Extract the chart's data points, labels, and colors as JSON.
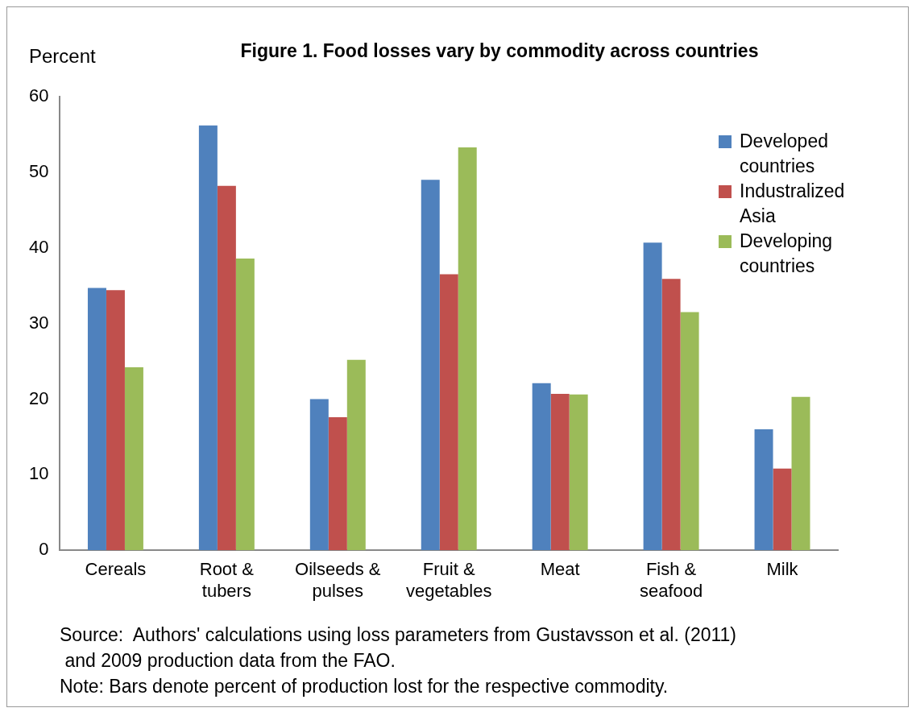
{
  "chart_data": {
    "type": "bar",
    "title": "Figure 1. Food losses vary by commodity across countries",
    "ylabel": "Percent",
    "categories": [
      "Cereals",
      "Root & tubers",
      "Oilseeds & pulses",
      "Fruit & vegetables",
      "Meat",
      "Fish & seafood",
      "Milk"
    ],
    "series": [
      {
        "name": "Developed countries",
        "color": "#4f81bd",
        "values": [
          34.7,
          56.2,
          20.0,
          49.0,
          22.1,
          40.7,
          16.0
        ]
      },
      {
        "name": "Industralized Asia",
        "color": "#c0504d",
        "values": [
          34.4,
          48.2,
          17.6,
          36.5,
          20.7,
          35.9,
          10.8
        ]
      },
      {
        "name": "Developing countries",
        "color": "#9bbb59",
        "values": [
          24.2,
          38.6,
          25.2,
          53.3,
          20.6,
          31.5,
          20.3
        ]
      }
    ],
    "ylim": [
      0,
      60
    ],
    "yticks": [
      0,
      10,
      20,
      30,
      40,
      50,
      60
    ],
    "grid": false,
    "legend": "top right",
    "annotations": [
      "Source:  Authors' calculations using loss parameters from Gustavsson et al. (2011)\n and 2009 production data from the FAO.",
      "Note: Bars denote percent of production lost for the respective commodity."
    ]
  }
}
